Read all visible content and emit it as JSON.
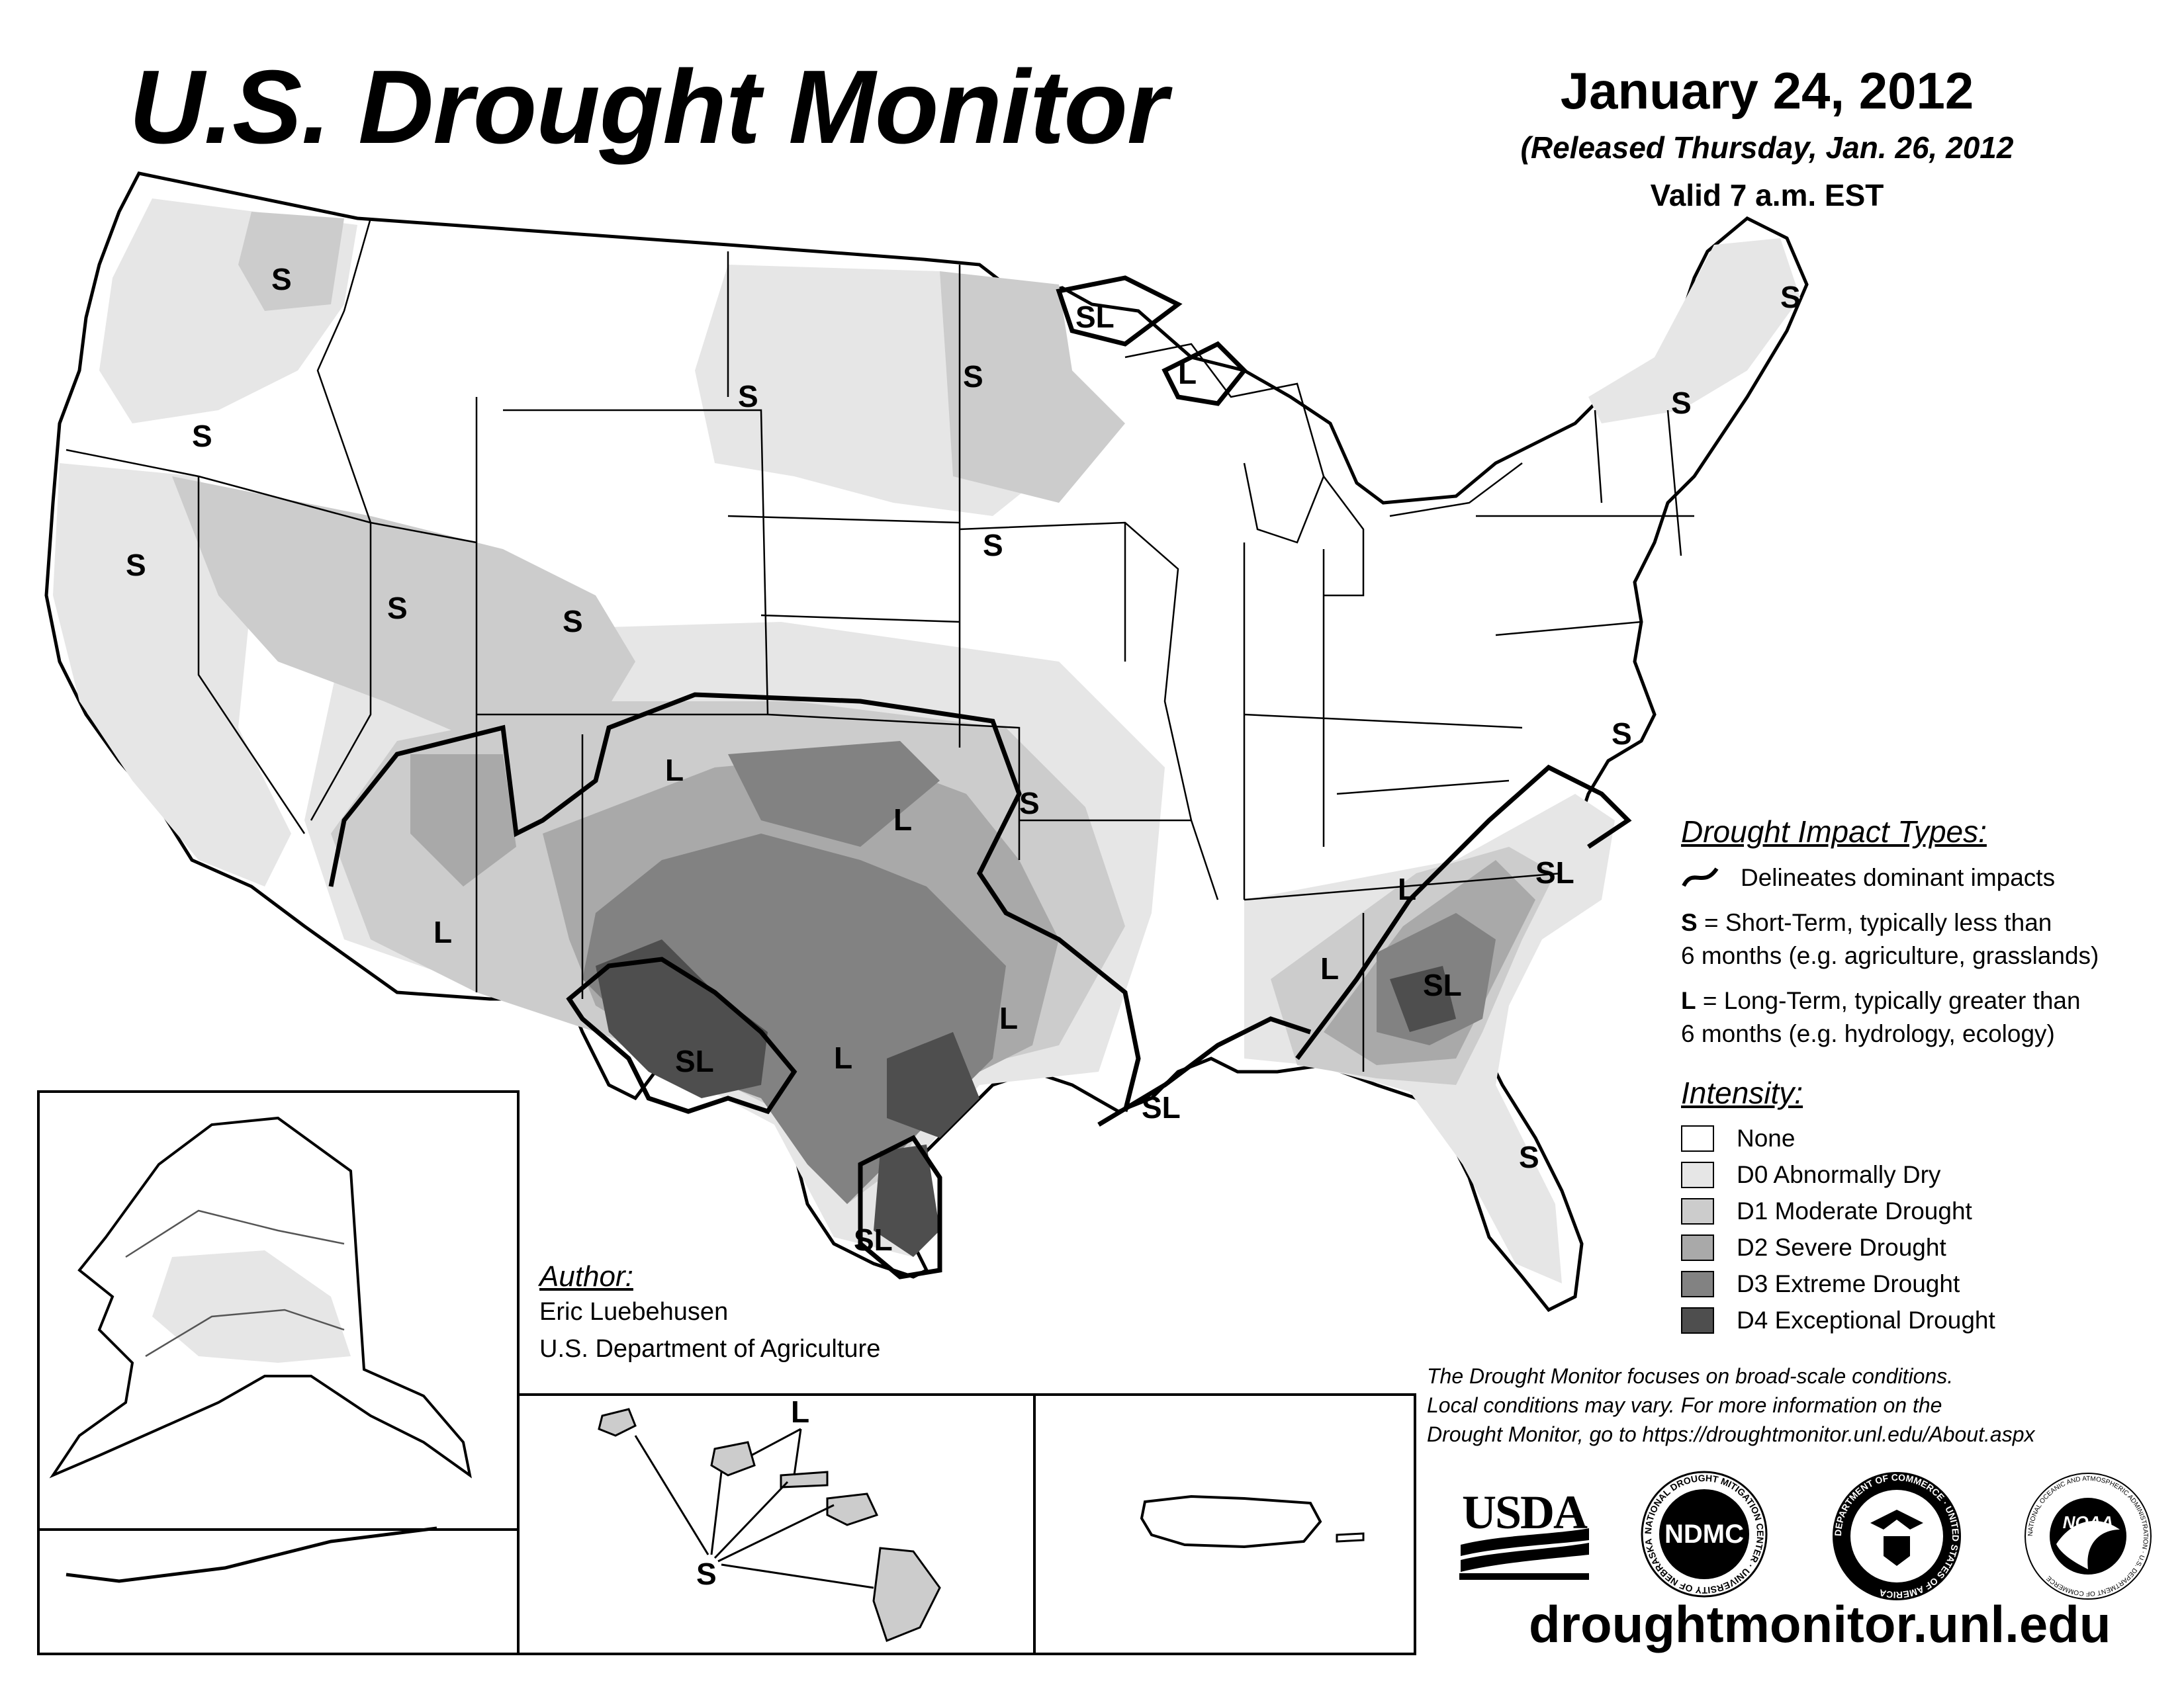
{
  "header": {
    "title": "U.S. Drought Monitor",
    "date": "January 24, 2012",
    "released": "(Released Thursday, Jan. 26, 2012",
    "valid": "Valid 7 a.m. EST"
  },
  "impact_legend": {
    "title": "Drought Impact Types:",
    "delineates": "Delineates dominant impacts",
    "s_key": "S",
    "s_line1": " = Short-Term, typically less than",
    "s_line2": "6 months (e.g. agriculture, grasslands)",
    "l_key": "L",
    "l_line1": " = Long-Term, typically greater than",
    "l_line2": "6 months (e.g. hydrology, ecology)"
  },
  "intensity_legend": {
    "title": "Intensity:",
    "items": [
      {
        "label": "None",
        "color": "#ffffff"
      },
      {
        "label": "D0 Abnormally Dry",
        "color": "#e6e6e6"
      },
      {
        "label": "D1 Moderate Drought",
        "color": "#cccccc"
      },
      {
        "label": "D2 Severe Drought",
        "color": "#a9a9a9"
      },
      {
        "label": "D3 Extreme Drought",
        "color": "#828282"
      },
      {
        "label": "D4 Exceptional Drought",
        "color": "#4e4e4e"
      }
    ]
  },
  "author": {
    "title": "Author:",
    "name": "Eric Luebehusen",
    "org": "U.S. Department of Agriculture"
  },
  "disclaimer": [
    "The Drought Monitor focuses on broad-scale conditions.",
    "Local conditions may vary. For more information on the",
    "Drought Monitor, go to https://droughtmonitor.unl.edu/About.aspx"
  ],
  "website": "droughtmonitor.unl.edu",
  "logos": {
    "usda": "USDA",
    "ndmc": "NDMC",
    "ndmc_ring": "NATIONAL DROUGHT MITIGATION CENTER · UNIVERSITY OF NEBRASKA",
    "doc_ring": "DEPARTMENT OF COMMERCE · UNITED STATES OF AMERICA",
    "noaa": "NOAA",
    "noaa_ring": "NATIONAL OCEANIC AND ATMOSPHERIC ADMINISTRATION · U.S. DEPARTMENT OF COMMERCE"
  },
  "map_labels": {
    "S": "S",
    "L": "L",
    "SL": "SL"
  },
  "map_layers": [
    "D0",
    "D1",
    "D2",
    "D3",
    "D4"
  ]
}
